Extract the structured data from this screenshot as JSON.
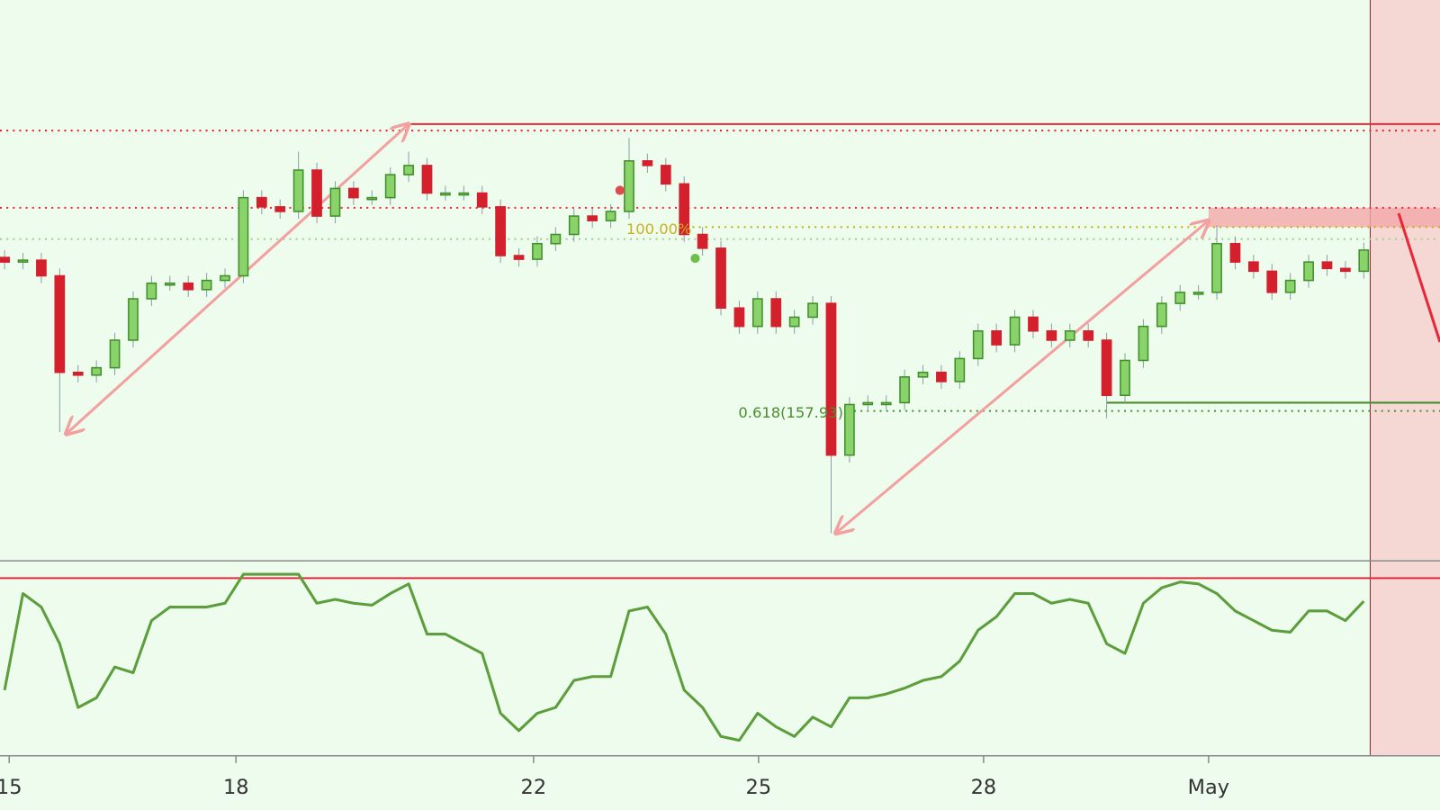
{
  "chart_data": [
    {
      "type": "candlestick",
      "x": [
        0,
        1,
        2,
        3,
        4,
        5,
        6,
        7,
        8,
        9,
        10,
        11,
        12,
        13,
        14,
        15,
        16,
        17,
        18,
        19,
        20,
        21,
        22,
        23,
        24,
        25,
        26,
        27,
        28,
        29,
        30,
        31,
        32,
        33,
        34,
        35,
        36,
        37,
        38,
        39,
        40,
        41,
        42,
        43,
        44,
        45,
        46,
        47,
        48,
        49,
        50,
        51,
        52,
        53,
        54,
        55,
        56,
        57,
        58,
        59,
        60,
        61,
        62,
        63,
        64,
        65,
        66,
        67,
        68,
        69,
        70,
        71,
        72,
        73,
        74
      ],
      "open": [
        159.6,
        159.55,
        159.57,
        159.4,
        158.35,
        158.32,
        158.4,
        158.7,
        159.15,
        159.32,
        159.32,
        159.25,
        159.35,
        159.4,
        160.25,
        160.15,
        160.1,
        160.55,
        160.05,
        160.35,
        160.25,
        160.25,
        160.5,
        160.6,
        160.3,
        160.3,
        160.3,
        160.15,
        159.62,
        159.58,
        159.75,
        159.85,
        160.05,
        160.0,
        160.1,
        160.65,
        160.6,
        160.4,
        159.85,
        159.7,
        159.05,
        158.85,
        159.15,
        158.85,
        158.95,
        159.1,
        157.45,
        158.0,
        158.02,
        158.02,
        158.3,
        158.35,
        158.25,
        158.5,
        158.8,
        158.65,
        158.95,
        158.8,
        158.7,
        158.8,
        158.7,
        158.1,
        158.48,
        158.85,
        159.1,
        159.22,
        159.22,
        159.75,
        159.55,
        159.45,
        159.22,
        159.35,
        159.55,
        159.48,
        159.45
      ],
      "high": [
        159.68,
        159.65,
        159.65,
        159.48,
        158.43,
        158.48,
        158.78,
        159.23,
        159.4,
        159.4,
        159.4,
        159.43,
        159.48,
        160.33,
        160.33,
        160.23,
        160.75,
        160.63,
        160.43,
        160.43,
        160.33,
        160.58,
        160.75,
        160.68,
        160.38,
        160.38,
        160.38,
        160.23,
        159.7,
        159.83,
        159.93,
        160.13,
        160.13,
        160.18,
        160.9,
        160.73,
        160.68,
        160.48,
        159.93,
        159.78,
        159.13,
        159.23,
        159.23,
        159.03,
        159.18,
        159.18,
        158.08,
        158.1,
        158.1,
        158.38,
        158.43,
        158.43,
        158.58,
        158.88,
        158.88,
        159.03,
        159.03,
        158.88,
        158.88,
        158.88,
        158.78,
        158.56,
        158.93,
        159.18,
        159.3,
        159.3,
        159.95,
        159.83,
        159.63,
        159.53,
        159.43,
        159.63,
        159.63,
        159.56,
        159.76
      ],
      "low": [
        159.47,
        159.47,
        159.32,
        157.7,
        158.24,
        158.24,
        158.32,
        158.62,
        159.07,
        159.24,
        159.17,
        159.17,
        159.27,
        159.32,
        160.07,
        160.02,
        160.02,
        159.97,
        159.97,
        160.17,
        160.17,
        160.17,
        160.42,
        160.22,
        160.22,
        160.22,
        160.07,
        159.54,
        159.5,
        159.5,
        159.67,
        159.77,
        159.92,
        159.92,
        160.02,
        160.52,
        160.32,
        159.77,
        159.62,
        158.97,
        158.77,
        158.77,
        158.77,
        158.77,
        158.87,
        156.6,
        157.37,
        157.92,
        157.94,
        157.94,
        158.22,
        158.17,
        158.17,
        158.42,
        158.57,
        158.57,
        158.72,
        158.62,
        158.62,
        158.62,
        157.85,
        158.02,
        158.4,
        158.77,
        159.02,
        159.14,
        159.14,
        159.47,
        159.37,
        159.14,
        159.14,
        159.27,
        159.4,
        159.37,
        159.37
      ],
      "close": [
        159.55,
        159.57,
        159.4,
        158.35,
        158.32,
        158.4,
        158.7,
        159.15,
        159.32,
        159.32,
        159.25,
        159.35,
        159.4,
        160.25,
        160.15,
        160.1,
        160.55,
        160.05,
        160.35,
        160.25,
        160.25,
        160.5,
        160.6,
        160.3,
        160.3,
        160.3,
        160.15,
        159.62,
        159.58,
        159.75,
        159.85,
        160.05,
        160.0,
        160.1,
        160.65,
        160.6,
        160.4,
        159.85,
        159.7,
        159.05,
        158.85,
        159.15,
        158.85,
        158.95,
        159.1,
        157.45,
        158.0,
        158.02,
        158.02,
        158.3,
        158.35,
        158.25,
        158.5,
        158.8,
        158.65,
        158.95,
        158.8,
        158.7,
        158.8,
        158.7,
        158.1,
        158.48,
        158.85,
        159.1,
        159.22,
        159.22,
        159.75,
        159.55,
        159.45,
        159.22,
        159.35,
        159.55,
        159.48,
        159.45,
        159.68
      ],
      "up_color": "#3f8f2a",
      "down_color": "#d4202c",
      "xlim": [
        -0.25,
        78.15
      ],
      "ylim": [
        156.3,
        162.4
      ],
      "levels": [
        {
          "value": 161.05,
          "color": "#e8283a",
          "style": "solid"
        },
        {
          "value": 160.98,
          "color": "#e8283a",
          "style": "dotted"
        },
        {
          "value": 160.14,
          "color": "#e8283a",
          "style": "dotted"
        },
        {
          "value": 159.93,
          "color": "#c8b020",
          "style": "dotted"
        },
        {
          "value": 159.8,
          "color": "#9fcf8f",
          "style": "dotted"
        },
        {
          "value": 158.02,
          "color": "#4c8c30",
          "style": "solid"
        },
        {
          "value": 157.93,
          "color": "#4c8c30",
          "style": "dotted"
        }
      ],
      "annotations": [
        "100.00%",
        "0.618(157.93)"
      ]
    },
    {
      "type": "line",
      "x": [
        0,
        1,
        2,
        3,
        4,
        5,
        6,
        7,
        8,
        9,
        10,
        11,
        12,
        13,
        14,
        15,
        16,
        17,
        18,
        19,
        20,
        21,
        22,
        23,
        24,
        25,
        26,
        27,
        28,
        29,
        30,
        31,
        32,
        33,
        34,
        35,
        36,
        37,
        38,
        39,
        40,
        41,
        42,
        43,
        44,
        45,
        46,
        47,
        48,
        49,
        50,
        51,
        52,
        53,
        54,
        55,
        56,
        57,
        58,
        59,
        60,
        61,
        62,
        63,
        64,
        65,
        66,
        67,
        68,
        69,
        70,
        71,
        72,
        73,
        74
      ],
      "values": [
        34,
        84,
        77,
        58,
        25,
        30,
        46,
        43,
        70,
        77,
        77,
        77,
        79,
        94,
        94,
        94,
        94,
        79,
        81,
        79,
        78,
        84,
        89,
        63,
        63,
        58,
        53,
        22,
        13,
        22,
        25,
        39,
        41,
        41,
        75,
        77,
        63,
        34,
        25,
        10,
        8,
        22,
        15,
        10,
        20,
        15,
        30,
        30,
        32,
        35,
        39,
        41,
        49,
        65,
        72,
        84,
        84,
        79,
        81,
        79,
        58,
        53,
        79,
        87,
        90,
        89,
        84,
        75,
        70,
        65,
        64,
        75,
        75,
        70,
        80
      ],
      "color": "#5c9e3c",
      "level": 92,
      "level_color": "#e8283a",
      "xlim": [
        -0.25,
        78.15
      ],
      "ylim": [
        0,
        100
      ],
      "xticks": [
        {
          "value": 0.25,
          "label": "15"
        },
        {
          "value": 12.6,
          "label": "18"
        },
        {
          "value": 28.8,
          "label": "22"
        },
        {
          "value": 41.05,
          "label": "25"
        },
        {
          "value": 53.3,
          "label": "28"
        },
        {
          "value": 65.55,
          "label": "May"
        }
      ]
    }
  ]
}
